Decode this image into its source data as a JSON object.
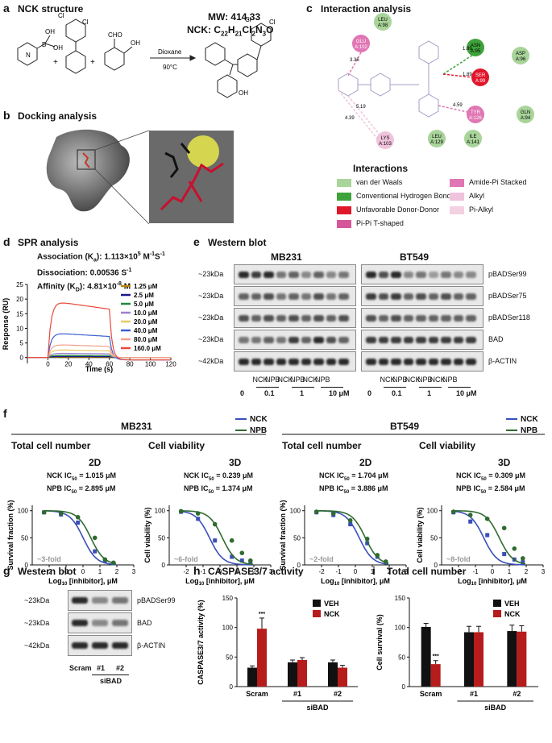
{
  "panels": {
    "a": {
      "letter": "a",
      "title": "NCK structure",
      "mw": "MW: 414.33",
      "formula": "NCK: C",
      "formula_sub1": "22",
      "formula_h": "H",
      "formula_sub2": "21",
      "formula_cl": "Cl",
      "formula_sub3": "2",
      "formula_no": "N",
      "formula_sub4": "3",
      "formula_o": "O",
      "reagent": "Dioxane",
      "temp": "90°C",
      "boronic": "B",
      "oh1": "OH",
      "oh2": "OH",
      "cl": "Cl",
      "cho": "CHO",
      "oh": "OH",
      "plus": "+",
      "n": "N"
    },
    "b": {
      "letter": "b",
      "title": "Docking analysis"
    },
    "c": {
      "letter": "c",
      "title": "Interaction analysis",
      "residues": [
        "LEU A:98",
        "GLU A:102",
        "ASN A:95",
        "ASP A:96",
        "SER A:99",
        "TYR A:126",
        "GLN A:94",
        "LYS A:103",
        "LEU A:129",
        "ILE A:141"
      ],
      "distances": [
        "3.36",
        "1.89",
        "1.89",
        "4.59",
        "5.19",
        "4.39"
      ],
      "interactions_title": "Interactions",
      "legend": [
        {
          "label": "van der Waals",
          "color": "#a9d49a"
        },
        {
          "label": "Amide-Pi Stacked",
          "color": "#e076b3"
        },
        {
          "label": "Conventional Hydrogen Bond",
          "color": "#3fa33b"
        },
        {
          "label": "Alkyl",
          "color": "#f0c3dc"
        },
        {
          "label": "Unfavorable Donor-Donor",
          "color": "#e0162b"
        },
        {
          "label": "Pi-Alkyl",
          "color": "#f3d0e2"
        },
        {
          "label": "Pi-Pi T-shaped",
          "color": "#d6569a"
        }
      ]
    },
    "d": {
      "letter": "d",
      "title": "SPR analysis",
      "assoc": "Association (K",
      "assoc_sub": "a",
      "assoc_val": "): 1.113×10",
      "assoc_sup": "5",
      "assoc_unit": " M",
      "assoc_unit_sup": "-1",
      "assoc_unit2": "S",
      "assoc_unit2_sup": "-1",
      "dissoc": "Dissociation: 0.00536 S",
      "dissoc_sup": "-1",
      "affinity": "Affinity (K",
      "affinity_sub": "D",
      "affinity_val": "): 4.81×10",
      "affinity_sup": "-8",
      "affinity_unit": " M"
    },
    "e": {
      "letter": "e",
      "title": "Western blot",
      "cell1": "MB231",
      "cell2": "BT549",
      "mw": [
        "~23kDa",
        "~23kDa",
        "~23kDa",
        "~23kDa",
        "~42kDa"
      ],
      "proteins": [
        "pBADSer99",
        "pBADSer75",
        "pBADSer118",
        "BAD",
        "β-ACTIN"
      ],
      "lane_labels": [
        "NCK",
        "NPB",
        "NCK",
        "NPB",
        "NCK",
        "NPB"
      ],
      "doses": [
        "0",
        "0.1",
        "1",
        "10 μM"
      ]
    },
    "f": {
      "letter": "f",
      "cell1": "MB231",
      "cell2": "BT549",
      "total": "Total cell number",
      "viab": "Cell viability",
      "d2": "2D",
      "d3": "3D",
      "legend_nck": "NCK",
      "legend_npb": "NPB",
      "ylabel_surv": "Survival fraction (%)",
      "ylabel_viab": "Cell viability (%)",
      "xlabel": "Log",
      "xlabel_sub": "10",
      "xlabel_rest": " [inhibitor], μM",
      "plots": [
        {
          "ic_nck": "NCK IC",
          "ic_nck_val": " = 1.015 μM",
          "ic_npb": "NPB IC",
          "ic_npb_val": " = 2.895 μM",
          "fold": "~3-fold"
        },
        {
          "ic_nck": "NCK IC",
          "ic_nck_val": " = 0.239 μM",
          "ic_npb": "NPB IC",
          "ic_npb_val": " = 1.374 μM",
          "fold": "~6-fold"
        },
        {
          "ic_nck": "NCK IC",
          "ic_nck_val": " = 1.704 μM",
          "ic_npb": "NPB IC",
          "ic_npb_val": " = 3.886 μM",
          "fold": "~2-fold"
        },
        {
          "ic_nck": "NCK IC",
          "ic_nck_val": " = 0.309 μM",
          "ic_npb": "NPB IC",
          "ic_npb_val": " = 2.584 μM",
          "fold": "~8-fold"
        }
      ],
      "ic_sub": "50"
    },
    "g": {
      "letter": "g",
      "title": "Western blot",
      "mw": [
        "~23kDa",
        "~23kDa",
        "~42kDa"
      ],
      "proteins": [
        "pBADSer99",
        "BAD",
        "β-ACTIN"
      ],
      "lanes": [
        "Scram",
        "#1",
        "#2"
      ],
      "group": "siBAD"
    },
    "h": {
      "letter": "h",
      "title": "CASPASE3/7 activity",
      "ylabel": "CASPASE3/7 activity (%)",
      "legend": [
        "VEH",
        "NCK"
      ],
      "cats": [
        "Scram",
        "#1",
        "#2"
      ],
      "group": "siBAD",
      "star": "***"
    },
    "i": {
      "letter": "i",
      "title": "Total cell number",
      "ylabel": "Cell survival (%)",
      "legend": [
        "VEH",
        "NCK"
      ],
      "cats": [
        "Scram",
        "#1",
        "#2"
      ],
      "group": "siBAD",
      "star": "***"
    }
  },
  "chart_data": [
    {
      "type": "line",
      "title": "SPR analysis",
      "xlabel": "Time (s)",
      "ylabel": "Response (RU)",
      "xlim": [
        -20,
        120
      ],
      "ylim": [
        -2,
        25
      ],
      "xticks": [
        0,
        20,
        40,
        60,
        80,
        100,
        120
      ],
      "yticks": [
        0,
        5,
        10,
        15,
        20,
        25
      ],
      "series": [
        {
          "name": "1.25 μM",
          "color": "#b8860b",
          "plateau": 0.2
        },
        {
          "name": "2.5 μM",
          "color": "#1a1a8c",
          "plateau": 0.4
        },
        {
          "name": "5.0 μM",
          "color": "#1e8a3a",
          "plateau": 0.8
        },
        {
          "name": "10.0 μM",
          "color": "#9b7fd0",
          "plateau": 1.5
        },
        {
          "name": "20.0 μM",
          "color": "#e6c86a",
          "plateau": 2.7
        },
        {
          "name": "40.0 μM",
          "color": "#3a5fd0",
          "plateau": 8.5
        },
        {
          "name": "80.0 μM",
          "color": "#f4a08a",
          "plateau": 4.5
        },
        {
          "name": "160.0 μM",
          "color": "#e8473a",
          "plateau": 19.5
        }
      ]
    },
    {
      "type": "scatter",
      "title": "2D",
      "xlim": [
        -3,
        3
      ],
      "ylim": [
        0,
        110
      ],
      "xticks": [
        -2,
        -1,
        0,
        1,
        2,
        3
      ],
      "yticks": [
        0,
        50,
        100
      ],
      "series": [
        {
          "name": "NCK",
          "color": "#3b4fb8",
          "x": [
            -2.3,
            -1.3,
            -0.3,
            0.7,
            1.3,
            1.8
          ],
          "y": [
            97,
            93,
            78,
            25,
            8,
            3
          ],
          "logic50": 0.0065
        },
        {
          "name": "NPB",
          "color": "#2f6b2f",
          "x": [
            -2.3,
            -1.3,
            -0.3,
            0.7,
            1.3,
            1.8
          ],
          "y": [
            97,
            95,
            88,
            50,
            10,
            4
          ],
          "logic50": 0.46
        }
      ]
    },
    {
      "type": "scatter",
      "title": "3D",
      "xlim": [
        -3,
        3
      ],
      "ylim": [
        0,
        110
      ],
      "xticks": [
        -2,
        -1,
        0,
        1,
        2,
        3
      ],
      "yticks": [
        0,
        50,
        100
      ],
      "series": [
        {
          "name": "NCK",
          "color": "#3b4fb8",
          "x": [
            -2.3,
            -1.3,
            -0.3,
            0.7,
            1.3,
            1.8
          ],
          "y": [
            98,
            85,
            45,
            15,
            8,
            5
          ],
          "logic50": -0.62
        },
        {
          "name": "NPB",
          "color": "#2f6b2f",
          "x": [
            -2.3,
            -1.3,
            -0.3,
            0.7,
            1.3,
            1.8
          ],
          "y": [
            99,
            95,
            75,
            45,
            22,
            8
          ],
          "logic50": 0.14
        }
      ]
    },
    {
      "type": "scatter",
      "title": "2D",
      "xlim": [
        -3,
        3
      ],
      "ylim": [
        0,
        110
      ],
      "xticks": [
        -2,
        -1,
        0,
        1,
        2,
        3
      ],
      "yticks": [
        0,
        50,
        100
      ],
      "series": [
        {
          "name": "NCK",
          "color": "#3b4fb8",
          "x": [
            -2.3,
            -1.3,
            -0.3,
            0.7,
            1.3,
            1.8
          ],
          "y": [
            97,
            92,
            75,
            40,
            15,
            5
          ],
          "logic50": 0.23
        },
        {
          "name": "NPB",
          "color": "#2f6b2f",
          "x": [
            -2.3,
            -1.3,
            -0.3,
            0.7,
            1.3,
            1.8
          ],
          "y": [
            98,
            95,
            82,
            48,
            18,
            6
          ],
          "logic50": 0.59
        }
      ]
    },
    {
      "type": "scatter",
      "title": "3D",
      "xlim": [
        -3,
        3
      ],
      "ylim": [
        0,
        110
      ],
      "xticks": [
        -2,
        -1,
        0,
        1,
        2,
        3
      ],
      "yticks": [
        0,
        50,
        100
      ],
      "series": [
        {
          "name": "NCK",
          "color": "#3b4fb8",
          "x": [
            -2.3,
            -1.3,
            -0.3,
            0.7,
            1.3,
            1.8
          ],
          "y": [
            97,
            80,
            55,
            20,
            10,
            5
          ],
          "logic50": -0.51
        },
        {
          "name": "NPB",
          "color": "#2f6b2f",
          "x": [
            -2.3,
            -1.3,
            -0.3,
            0.7,
            1.3,
            1.8
          ],
          "y": [
            98,
            92,
            85,
            68,
            30,
            12
          ],
          "logic50": 0.41
        }
      ]
    },
    {
      "type": "bar",
      "title": "CASPASE3/7 activity",
      "categories": [
        "Scram",
        "#1",
        "#2"
      ],
      "ylim": [
        0,
        150
      ],
      "yticks": [
        0,
        50,
        100,
        150
      ],
      "series": [
        {
          "name": "VEH",
          "color": "#111111",
          "values": [
            32,
            41,
            41
          ],
          "err": [
            3,
            4,
            4
          ]
        },
        {
          "name": "NCK",
          "color": "#b71c1c",
          "values": [
            98,
            45,
            32
          ],
          "err": [
            18,
            4,
            4
          ]
        }
      ]
    },
    {
      "type": "bar",
      "title": "Total cell number",
      "categories": [
        "Scram",
        "#1",
        "#2"
      ],
      "ylim": [
        0,
        150
      ],
      "yticks": [
        0,
        50,
        100,
        150
      ],
      "series": [
        {
          "name": "VEH",
          "color": "#111111",
          "values": [
            101,
            92,
            94
          ],
          "err": [
            6,
            10,
            10
          ]
        },
        {
          "name": "NCK",
          "color": "#b71c1c",
          "values": [
            38,
            92,
            93
          ],
          "err": [
            6,
            10,
            10
          ]
        }
      ]
    }
  ]
}
